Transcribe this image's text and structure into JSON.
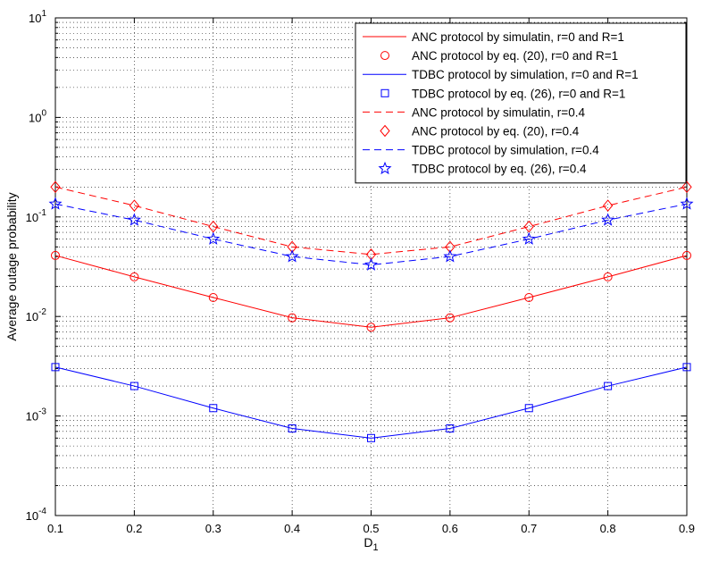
{
  "chart_data": {
    "type": "line",
    "title": "",
    "xlabel": "D",
    "xlabel_sub": "1",
    "ylabel": "Average outage probability",
    "xlim": [
      0.1,
      0.9
    ],
    "ylim": [
      0.0001,
      10
    ],
    "yscale": "log",
    "grid": true,
    "legend_position": "top-right",
    "x_ticks": [
      "0.1",
      "0.2",
      "0.3",
      "0.4",
      "0.5",
      "0.6",
      "0.7",
      "0.8",
      "0.9"
    ],
    "y_ticks": [
      {
        "base": "10",
        "exp": "-4"
      },
      {
        "base": "10",
        "exp": "-3"
      },
      {
        "base": "10",
        "exp": "-2"
      },
      {
        "base": "10",
        "exp": "-1"
      },
      {
        "base": "10",
        "exp": "0"
      },
      {
        "base": "10",
        "exp": "1"
      }
    ],
    "x": [
      0.1,
      0.2,
      0.3,
      0.4,
      0.5,
      0.6,
      0.7,
      0.8,
      0.9
    ],
    "series": [
      {
        "name": "ANC protocol by simulatin, r=0 and R=1",
        "color": "#ff0000",
        "style": "solid",
        "marker": "none",
        "values": [
          0.041,
          0.025,
          0.0155,
          0.0097,
          0.0078,
          0.0097,
          0.0155,
          0.025,
          0.041
        ]
      },
      {
        "name": "ANC protocol by eq. (20), r=0 and R=1",
        "color": "#ff0000",
        "style": "none",
        "marker": "circle",
        "values": [
          0.041,
          0.025,
          0.0155,
          0.0097,
          0.0078,
          0.0097,
          0.0155,
          0.025,
          0.041
        ]
      },
      {
        "name": "TDBC protocol by simulation, r=0 and R=1",
        "color": "#0000ff",
        "style": "solid",
        "marker": "none",
        "values": [
          0.0031,
          0.002,
          0.0012,
          0.00075,
          0.0006,
          0.00075,
          0.0012,
          0.002,
          0.0031
        ]
      },
      {
        "name": "TDBC protocol by eq. (26), r=0 and R=1",
        "color": "#0000ff",
        "style": "none",
        "marker": "square",
        "values": [
          0.0031,
          0.002,
          0.0012,
          0.00075,
          0.0006,
          0.00075,
          0.0012,
          0.002,
          0.0031
        ]
      },
      {
        "name": "ANC protocol by simulatin, r=0.4",
        "color": "#ff0000",
        "style": "dashed",
        "marker": "none",
        "values": [
          0.2,
          0.13,
          0.08,
          0.05,
          0.042,
          0.05,
          0.08,
          0.13,
          0.2
        ]
      },
      {
        "name": "ANC protocol by eq. (20), r=0.4",
        "color": "#ff0000",
        "style": "none",
        "marker": "diamond",
        "values": [
          0.2,
          0.13,
          0.08,
          0.05,
          0.042,
          0.05,
          0.08,
          0.13,
          0.2
        ]
      },
      {
        "name": "TDBC protocol by simulation, r=0.4",
        "color": "#0000ff",
        "style": "dashed",
        "marker": "none",
        "values": [
          0.135,
          0.093,
          0.06,
          0.04,
          0.033,
          0.04,
          0.06,
          0.093,
          0.135
        ]
      },
      {
        "name": "TDBC protocol by eq. (26), r=0.4",
        "color": "#0000ff",
        "style": "none",
        "marker": "star",
        "values": [
          0.135,
          0.093,
          0.06,
          0.04,
          0.033,
          0.04,
          0.06,
          0.093,
          0.135
        ]
      }
    ]
  }
}
